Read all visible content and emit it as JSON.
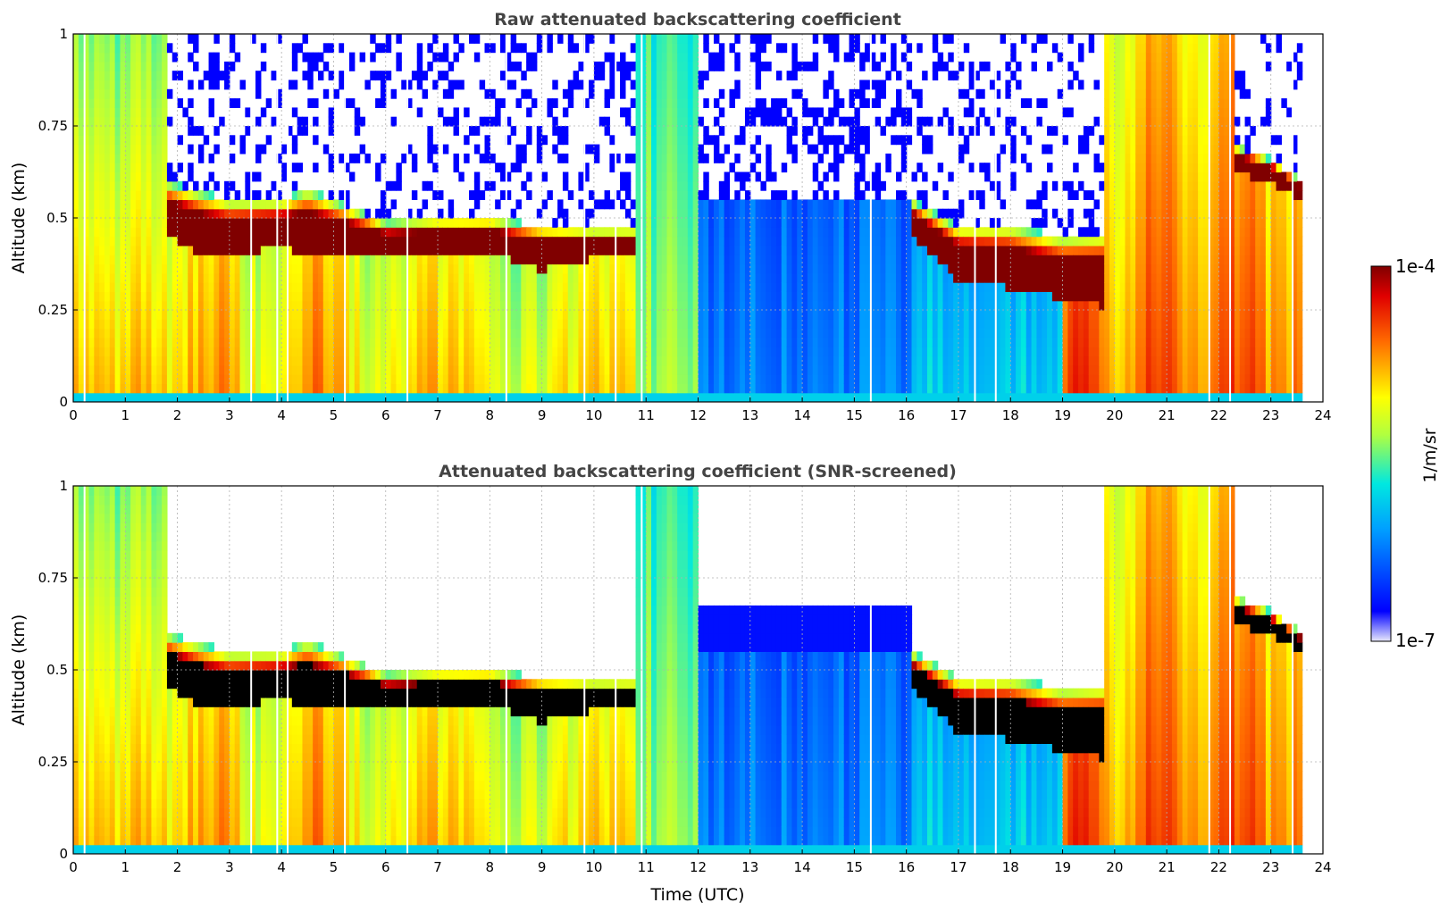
{
  "chart_data": [
    {
      "type": "heatmap",
      "title": "Raw attenuated backscattering coefficient",
      "xlabel": "",
      "ylabel": "Altitude (km)",
      "xlim": [
        0,
        24
      ],
      "ylim": [
        0,
        1
      ],
      "xticks": [
        "0",
        "1",
        "2",
        "3",
        "4",
        "5",
        "6",
        "7",
        "8",
        "9",
        "10",
        "11",
        "12",
        "13",
        "14",
        "15",
        "16",
        "17",
        "18",
        "19",
        "20",
        "21",
        "22",
        "23",
        "24"
      ],
      "yticks": [
        "0",
        "0.25",
        "0.5",
        "0.75",
        "1"
      ],
      "grid": true,
      "data_end_hour": 23.6,
      "cloud_layer": {
        "hours": [
          1.8,
          2.5,
          3.0,
          4.0,
          4.5,
          6.0,
          7.0,
          8.0,
          9.0,
          10.0,
          10.8,
          16.1,
          17.0,
          18.0,
          19.0,
          19.8,
          22.3,
          23.0,
          23.6
        ],
        "base_km": [
          0.45,
          0.4,
          0.4,
          0.42,
          0.4,
          0.4,
          0.4,
          0.41,
          0.36,
          0.39,
          0.4,
          0.45,
          0.33,
          0.31,
          0.28,
          0.26,
          0.62,
          0.6,
          0.55
        ],
        "top_km": [
          0.6,
          0.57,
          0.55,
          0.55,
          0.58,
          0.49,
          0.5,
          0.5,
          0.48,
          0.47,
          0.47,
          0.55,
          0.48,
          0.48,
          0.45,
          0.46,
          0.7,
          0.66,
          0.6
        ]
      }
    },
    {
      "type": "heatmap",
      "title": "Attenuated backscattering coefficient (SNR-screened)",
      "xlabel": "Time (UTC)",
      "ylabel": "Altitude (km)",
      "xlim": [
        0,
        24
      ],
      "ylim": [
        0,
        1
      ],
      "xticks": [
        "0",
        "1",
        "2",
        "3",
        "4",
        "5",
        "6",
        "7",
        "8",
        "9",
        "10",
        "11",
        "12",
        "13",
        "14",
        "15",
        "16",
        "17",
        "18",
        "19",
        "20",
        "21",
        "22",
        "23",
        "24"
      ],
      "yticks": [
        "0",
        "0.25",
        "0.5",
        "0.75",
        "1"
      ],
      "grid": true,
      "data_end_hour": 23.6
    }
  ],
  "colorbar": {
    "label": "1/m/sr",
    "max_label": "1e-4",
    "min_label": "1e-7",
    "colormap": "jet",
    "scale": "log",
    "colors": [
      "#e8e8fc",
      "#0000ff",
      "#00ccff",
      "#ffff00",
      "#ff6600",
      "#800000"
    ]
  }
}
